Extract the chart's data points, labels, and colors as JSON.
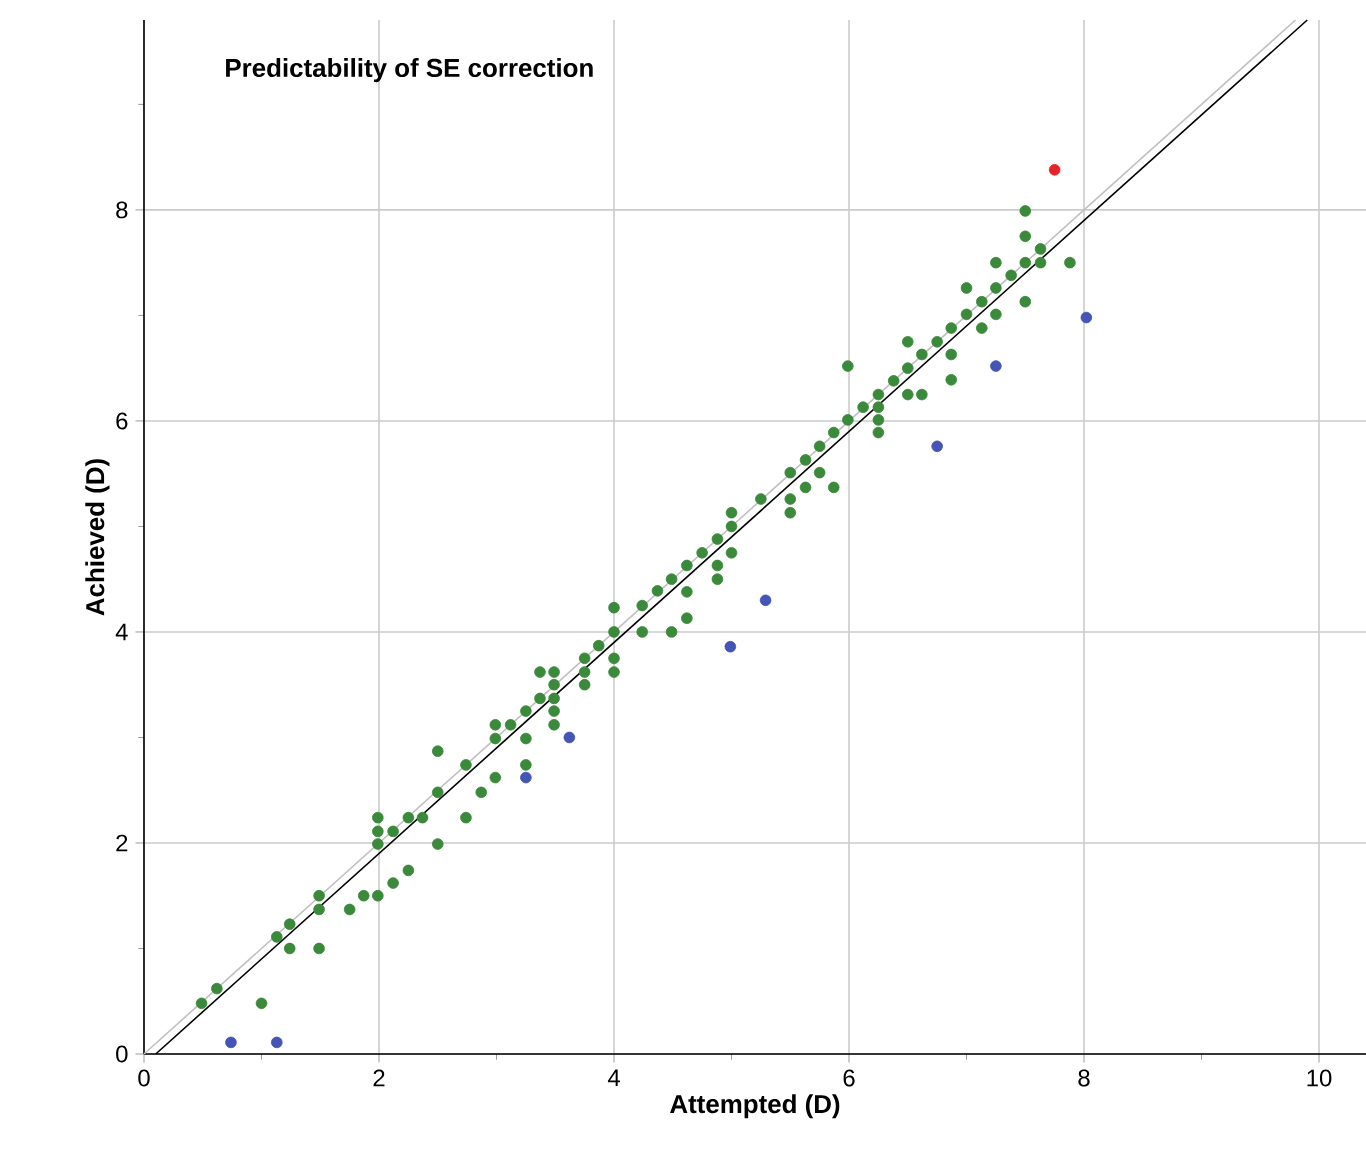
{
  "chart_data": {
    "type": "scatter",
    "title": "Predictability of SE correction",
    "xlabel": "Attempted (D)",
    "ylabel": "Achieved (D)",
    "xlim": [
      0,
      10.4
    ],
    "ylim": [
      0,
      9.8
    ],
    "xticks": [
      0,
      {
        "value": 1,
        "label": null
      },
      2,
      {
        "value": 3,
        "label": null
      },
      4,
      {
        "value": 5,
        "label": null
      },
      6,
      {
        "value": 7,
        "label": null
      },
      8,
      {
        "value": 9,
        "label": null
      },
      10
    ],
    "yticks": [
      0,
      {
        "value": 1,
        "label": null
      },
      2,
      {
        "value": 3,
        "label": null
      },
      4,
      {
        "value": 5,
        "label": null
      },
      6,
      {
        "value": 7,
        "label": null
      },
      8,
      {
        "value": 9,
        "label": null
      }
    ],
    "grid": true,
    "series": [
      {
        "marker": "circle",
        "color": "#3b8a3b",
        "x": [
          0.49,
          0.62,
          1.0,
          1.13,
          1.24,
          1.24,
          1.49,
          1.49,
          1.49,
          1.75,
          1.87,
          1.99,
          1.99,
          1.99,
          1.99,
          2.12,
          2.12,
          2.25,
          2.25,
          2.37,
          2.5,
          2.5,
          2.5,
          2.74,
          2.74,
          2.87,
          2.99,
          2.99,
          2.99,
          3.12,
          3.25,
          3.25,
          3.25,
          3.37,
          3.37,
          3.49,
          3.49,
          3.49,
          3.49,
          3.49,
          3.75,
          3.75,
          3.75,
          3.87,
          4.0,
          4.0,
          4.0,
          4.0,
          4.24,
          4.24,
          4.37,
          4.49,
          4.49,
          4.62,
          4.62,
          4.62,
          4.75,
          4.88,
          4.88,
          4.88,
          5.0,
          5.0,
          5.0,
          5.25,
          5.5,
          5.5,
          5.5,
          5.63,
          5.63,
          5.75,
          5.75,
          5.87,
          5.87,
          5.99,
          5.99,
          6.12,
          6.25,
          6.25,
          6.25,
          6.25,
          6.38,
          6.5,
          6.5,
          6.62,
          6.62,
          6.5,
          6.75,
          6.87,
          6.87,
          6.87,
          7.0,
          7.0,
          7.13,
          7.13,
          7.25,
          7.25,
          7.25,
          7.38,
          7.5,
          7.5,
          7.5,
          7.5,
          7.63,
          7.63,
          7.88
        ],
        "values": [
          0.48,
          0.62,
          0.48,
          1.11,
          1.23,
          1.0,
          1.5,
          1.37,
          1.0,
          1.37,
          1.5,
          1.5,
          1.99,
          2.11,
          2.24,
          2.11,
          1.62,
          1.74,
          2.24,
          2.24,
          1.99,
          2.48,
          2.87,
          2.24,
          2.74,
          2.48,
          2.62,
          2.99,
          3.12,
          3.12,
          3.25,
          2.99,
          2.74,
          3.37,
          3.62,
          3.62,
          3.5,
          3.37,
          3.25,
          3.12,
          3.5,
          3.62,
          3.75,
          3.87,
          3.62,
          3.75,
          4.0,
          4.23,
          4.25,
          4.0,
          4.39,
          4.5,
          4.0,
          4.63,
          4.38,
          4.13,
          4.75,
          4.88,
          4.63,
          4.5,
          4.75,
          5.0,
          5.13,
          5.26,
          5.51,
          5.26,
          5.13,
          5.63,
          5.37,
          5.76,
          5.51,
          5.89,
          5.37,
          6.01,
          6.52,
          6.13,
          6.25,
          6.13,
          6.01,
          5.89,
          6.38,
          6.5,
          6.25,
          6.25,
          6.63,
          6.75,
          6.75,
          6.63,
          6.39,
          6.88,
          7.01,
          7.26,
          7.13,
          6.88,
          7.26,
          7.01,
          7.5,
          7.38,
          7.5,
          7.75,
          7.99,
          7.13,
          7.63,
          7.5,
          7.5
        ]
      },
      {
        "marker": "circle",
        "color": "#4455b5",
        "x": [
          0.74,
          1.13,
          3.25,
          3.62,
          4.99,
          5.29,
          6.75,
          7.25,
          8.02
        ],
        "values": [
          0.11,
          0.11,
          2.62,
          3.0,
          3.86,
          4.3,
          5.76,
          6.52,
          6.98
        ]
      },
      {
        "marker": "circle",
        "color": "#e8232a",
        "x": [
          7.75
        ],
        "values": [
          8.38
        ]
      },
      {
        "type": "line",
        "marker": "none",
        "color": "#c0c0c0",
        "x": [
          0,
          9.8
        ],
        "values": [
          0,
          9.8
        ]
      },
      {
        "type": "line",
        "marker": "none",
        "color": "#000000",
        "x": [
          0.1,
          9.9
        ],
        "values": [
          0,
          9.8
        ]
      }
    ]
  }
}
